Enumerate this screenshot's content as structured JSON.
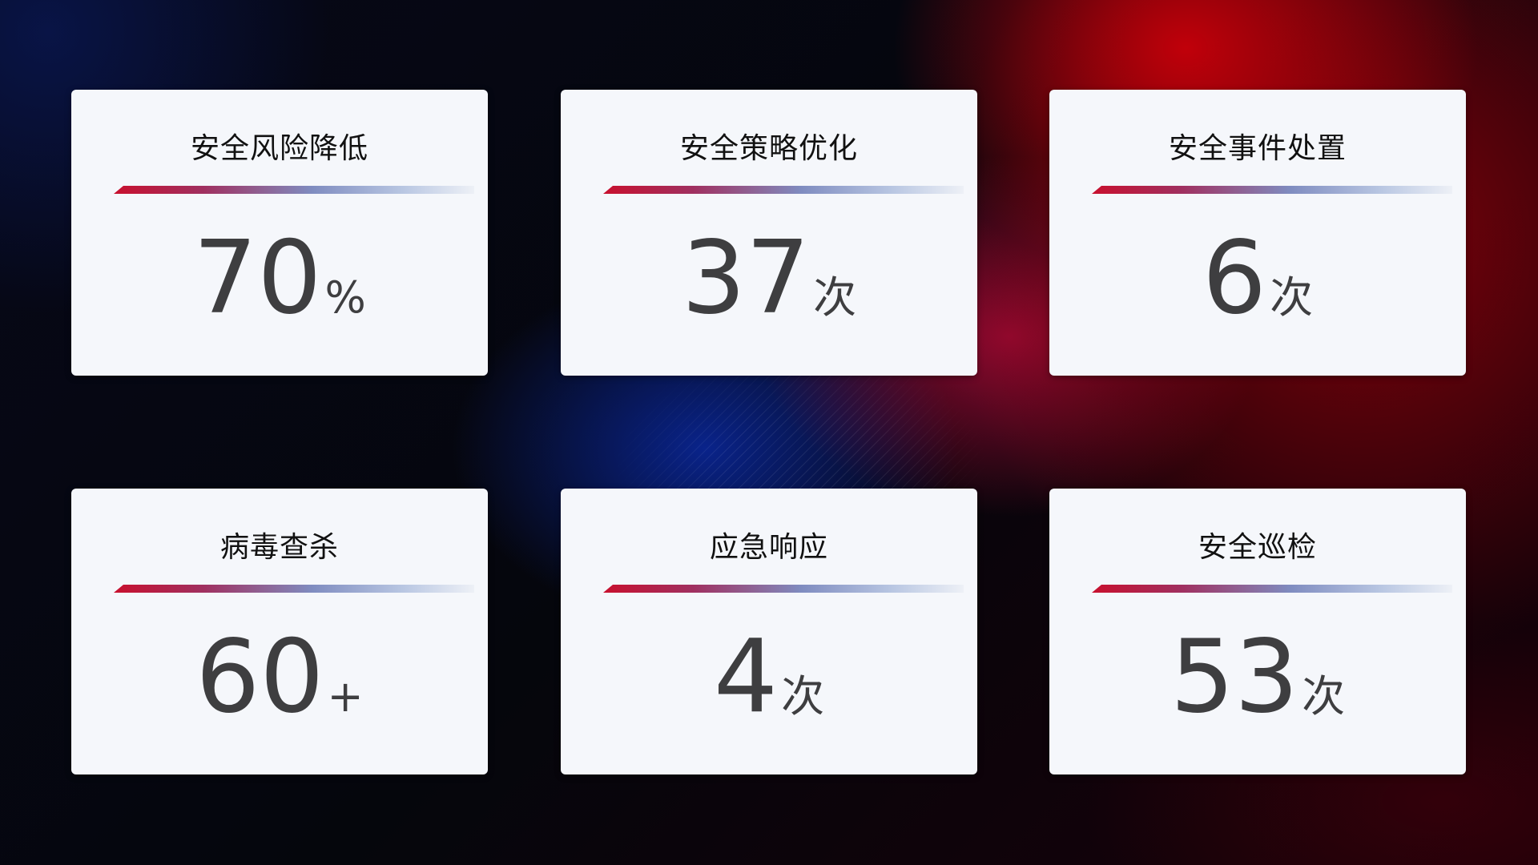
{
  "cards": [
    {
      "title": "安全风险降低",
      "value": "70",
      "unit": "%"
    },
    {
      "title": "安全策略优化",
      "value": "37",
      "unit": "次"
    },
    {
      "title": "安全事件处置",
      "value": "6",
      "unit": "次"
    },
    {
      "title": "病毒查杀",
      "value": "60",
      "unit": "+"
    },
    {
      "title": "应急响应",
      "value": "4",
      "unit": "次"
    },
    {
      "title": "安全巡检",
      "value": "53",
      "unit": "次"
    }
  ],
  "colors": {
    "accent_red": "#c8102e",
    "accent_blue": "#7f8cc0",
    "card_bg": "#f5f7fb",
    "value_text": "#3e3e40"
  }
}
